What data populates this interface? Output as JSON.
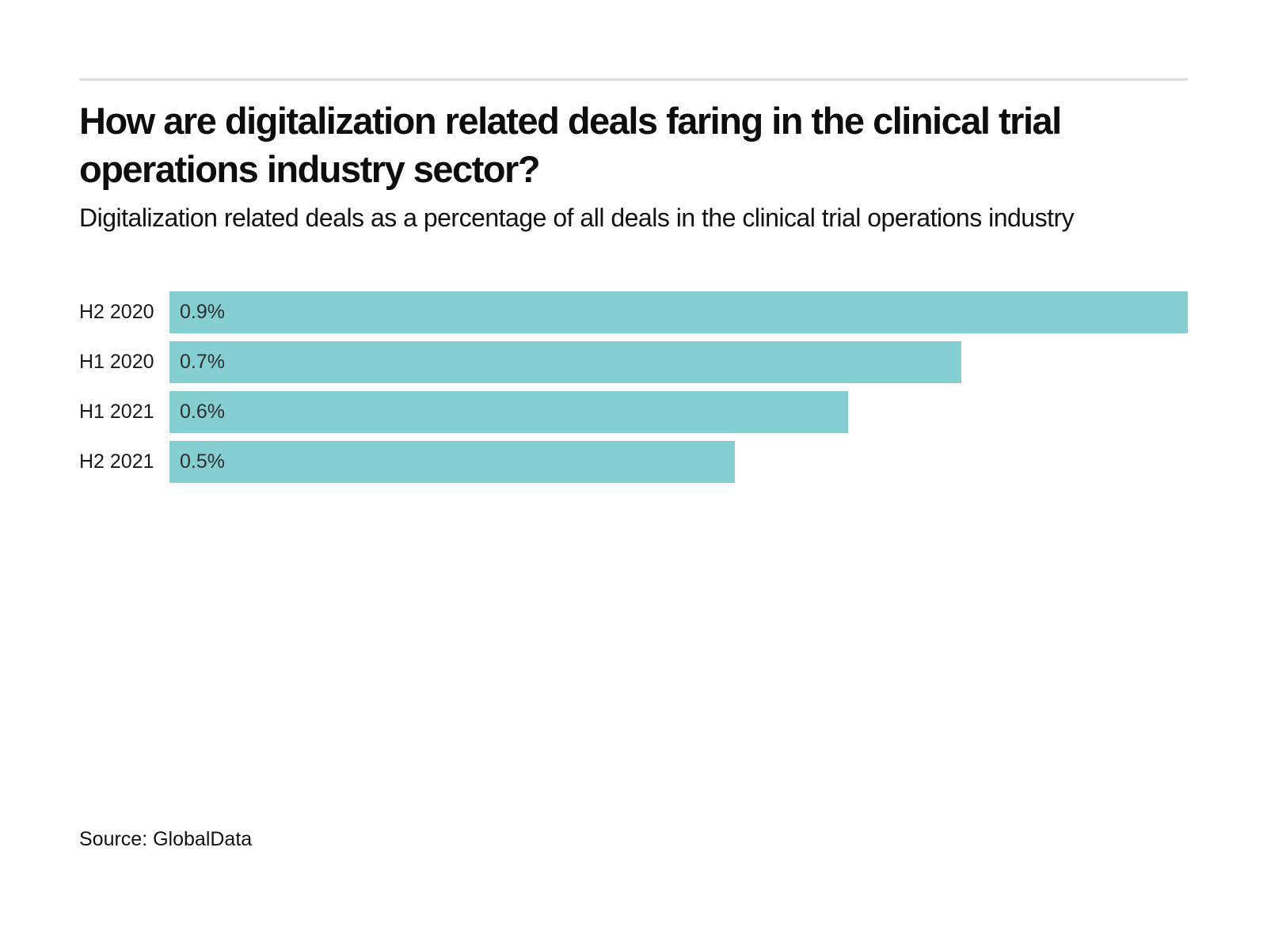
{
  "chart_data": {
    "type": "bar",
    "orientation": "horizontal",
    "title": "How are digitalization related deals faring in the clinical trial operations industry sector?",
    "subtitle": "Digitalization related deals as a percentage of all deals in the clinical trial operations industry",
    "categories": [
      "H2 2020",
      "H1 2020",
      "H1 2021",
      "H2 2021"
    ],
    "values": [
      0.9,
      0.7,
      0.6,
      0.5
    ],
    "value_labels": [
      "0.9%",
      "0.7%",
      "0.6%",
      "0.5%"
    ],
    "xlim": [
      0,
      0.9
    ],
    "grid": "off",
    "legend": "none",
    "bar_color": "#85ced2",
    "source": "Source: GlobalData"
  }
}
